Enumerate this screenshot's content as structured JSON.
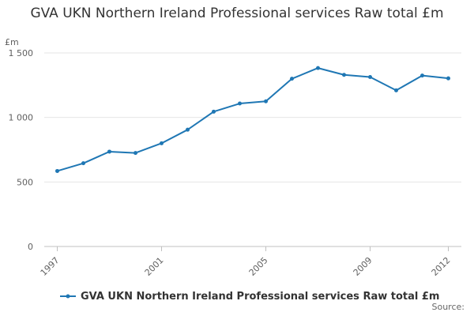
{
  "chart_data": {
    "type": "line",
    "title": "GVA UKN Northern Ireland Professional services Raw total £m",
    "ylabel": "£m",
    "xlabel": "",
    "x": [
      1997,
      1998,
      1999,
      2000,
      2001,
      2002,
      2003,
      2004,
      2005,
      2006,
      2007,
      2008,
      2009,
      2010,
      2011,
      2012
    ],
    "x_ticks": [
      "1997",
      "2001",
      "2005",
      "2009",
      "2012"
    ],
    "y_ticks": [
      "0",
      "500",
      "1 000",
      "1 500"
    ],
    "ylim": [
      0,
      1500
    ],
    "grid": true,
    "legend_position": "bottom",
    "color": "#1f77b4",
    "series": [
      {
        "name": "GVA UKN Northern Ireland Professional services Raw total £m",
        "values": [
          585,
          645,
          735,
          725,
          800,
          905,
          1045,
          1108,
          1125,
          1300,
          1383,
          1330,
          1313,
          1210,
          1325,
          1303
        ]
      }
    ]
  },
  "source_label": "Source:"
}
